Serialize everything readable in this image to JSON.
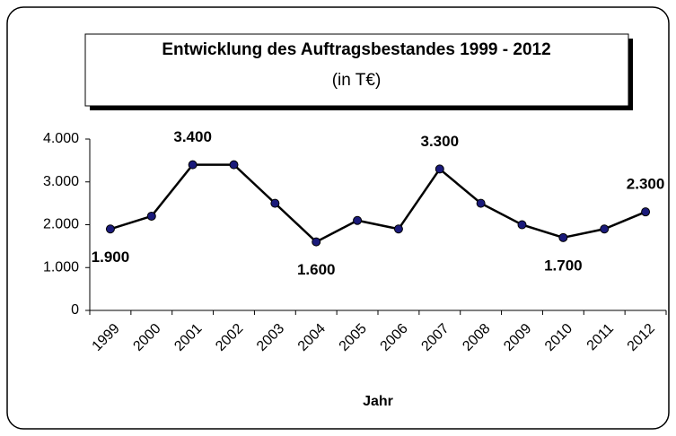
{
  "chart_data": {
    "type": "line",
    "title": "Entwicklung des Auftragsbestandes 1999 - 2012",
    "subtitle": "(in T€)",
    "x_label": "Jahr",
    "categories": [
      "1999",
      "2000",
      "2001",
      "2002",
      "2003",
      "2004",
      "2005",
      "2006",
      "2007",
      "2008",
      "2009",
      "2010",
      "2011",
      "2012"
    ],
    "series": [
      {
        "name": "Auftragsbestand",
        "color": "#000000",
        "marker_color": "#1a1a7a",
        "values": [
          1900,
          2200,
          3400,
          3400,
          2500,
          1600,
          2100,
          1900,
          3300,
          2500,
          2000,
          1700,
          1900,
          2300
        ],
        "value_labels": [
          "1.900",
          null,
          "3.400",
          null,
          null,
          "1.600",
          null,
          null,
          "3.300",
          null,
          null,
          "1.700",
          null,
          "2.300"
        ]
      }
    ],
    "ylim": [
      0,
      4000
    ],
    "yticks": [
      0,
      {
        "value": 1000,
        "label": "1.000"
      },
      {
        "value": 2000,
        "label": "2.000"
      },
      {
        "value": 3000,
        "label": "3.000"
      },
      {
        "value": 4000,
        "label": "4.000"
      }
    ],
    "grid": false,
    "legend": false
  }
}
